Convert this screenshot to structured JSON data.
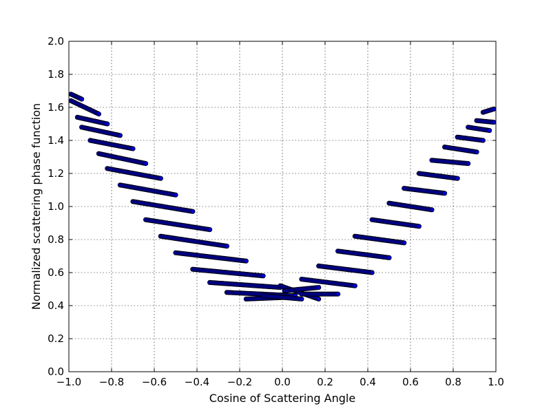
{
  "chart_data": {
    "type": "scatter",
    "title": "",
    "xlabel": "Cosine of Scattering Angle",
    "ylabel": "Normalized scattering phase function",
    "xlim": [
      -1.0,
      1.0
    ],
    "ylim": [
      0.0,
      2.0
    ],
    "xticks": [
      -1.0,
      -0.8,
      -0.6,
      -0.4,
      -0.2,
      0.0,
      0.2,
      0.4,
      0.6,
      0.8,
      1.0
    ],
    "xtick_labels": [
      "−1.0",
      "−0.8",
      "−0.6",
      "−0.4",
      "−0.2",
      "0.0",
      "0.2",
      "0.4",
      "0.6",
      "0.8",
      "1.0"
    ],
    "yticks": [
      0.0,
      0.2,
      0.4,
      0.6,
      0.8,
      1.0,
      1.2,
      1.4,
      1.6,
      1.8,
      2.0
    ],
    "ytick_labels": [
      "0.0",
      "0.2",
      "0.4",
      "0.6",
      "0.8",
      "1.0",
      "1.2",
      "1.4",
      "1.6",
      "1.8",
      "2.0"
    ],
    "grid": true,
    "marker_fill": "#0000cc",
    "marker_edge": "#000000",
    "series": [
      {
        "segments": [
          {
            "x0": -0.99,
            "y0": 1.68,
            "x1": -0.94,
            "y1": 1.65
          },
          {
            "x0": -0.99,
            "y0": 1.64,
            "x1": -0.86,
            "y1": 1.56
          },
          {
            "x0": -0.96,
            "y0": 1.54,
            "x1": -0.82,
            "y1": 1.5
          },
          {
            "x0": -0.94,
            "y0": 1.48,
            "x1": -0.76,
            "y1": 1.43
          },
          {
            "x0": -0.9,
            "y0": 1.4,
            "x1": -0.7,
            "y1": 1.35
          },
          {
            "x0": -0.86,
            "y0": 1.32,
            "x1": -0.64,
            "y1": 1.26
          },
          {
            "x0": -0.82,
            "y0": 1.23,
            "x1": -0.57,
            "y1": 1.17
          },
          {
            "x0": -0.76,
            "y0": 1.13,
            "x1": -0.5,
            "y1": 1.07
          },
          {
            "x0": -0.7,
            "y0": 1.03,
            "x1": -0.42,
            "y1": 0.97
          },
          {
            "x0": -0.64,
            "y0": 0.92,
            "x1": -0.34,
            "y1": 0.86
          },
          {
            "x0": -0.57,
            "y0": 0.82,
            "x1": -0.26,
            "y1": 0.76
          },
          {
            "x0": -0.5,
            "y0": 0.72,
            "x1": -0.17,
            "y1": 0.67
          },
          {
            "x0": -0.42,
            "y0": 0.62,
            "x1": -0.09,
            "y1": 0.58
          },
          {
            "x0": -0.34,
            "y0": 0.54,
            "x1": -0.01,
            "y1": 0.51
          },
          {
            "x0": -0.26,
            "y0": 0.48,
            "x1": 0.06,
            "y1": 0.46
          },
          {
            "x0": -0.17,
            "y0": 0.44,
            "x1": 0.02,
            "y1": 0.45
          },
          {
            "x0": -0.09,
            "y0": 0.46,
            "x1": 0.09,
            "y1": 0.44
          },
          {
            "x0": -0.01,
            "y0": 0.52,
            "x1": 0.17,
            "y1": 0.44
          },
          {
            "x0": 0.01,
            "y0": 0.49,
            "x1": 0.17,
            "y1": 0.51
          },
          {
            "x0": 0.09,
            "y0": 0.47,
            "x1": 0.26,
            "y1": 0.47
          },
          {
            "x0": 0.09,
            "y0": 0.56,
            "x1": 0.34,
            "y1": 0.52
          },
          {
            "x0": 0.17,
            "y0": 0.64,
            "x1": 0.42,
            "y1": 0.6
          },
          {
            "x0": 0.26,
            "y0": 0.73,
            "x1": 0.5,
            "y1": 0.69
          },
          {
            "x0": 0.34,
            "y0": 0.82,
            "x1": 0.57,
            "y1": 0.78
          },
          {
            "x0": 0.42,
            "y0": 0.92,
            "x1": 0.64,
            "y1": 0.88
          },
          {
            "x0": 0.5,
            "y0": 1.02,
            "x1": 0.7,
            "y1": 0.98
          },
          {
            "x0": 0.57,
            "y0": 1.11,
            "x1": 0.76,
            "y1": 1.08
          },
          {
            "x0": 0.64,
            "y0": 1.2,
            "x1": 0.82,
            "y1": 1.17
          },
          {
            "x0": 0.7,
            "y0": 1.28,
            "x1": 0.87,
            "y1": 1.26
          },
          {
            "x0": 0.76,
            "y0": 1.36,
            "x1": 0.91,
            "y1": 1.33
          },
          {
            "x0": 0.82,
            "y0": 1.42,
            "x1": 0.94,
            "y1": 1.4
          },
          {
            "x0": 0.87,
            "y0": 1.48,
            "x1": 0.97,
            "y1": 1.46
          },
          {
            "x0": 0.91,
            "y0": 1.52,
            "x1": 0.99,
            "y1": 1.51
          },
          {
            "x0": 0.94,
            "y0": 1.57,
            "x1": 0.99,
            "y1": 1.59
          }
        ]
      }
    ]
  }
}
